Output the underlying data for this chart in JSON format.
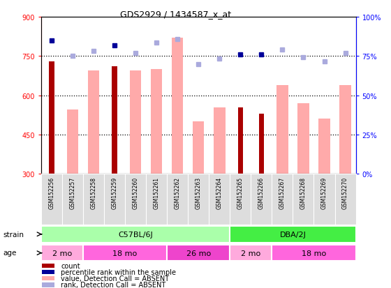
{
  "title": "GDS2929 / 1434587_x_at",
  "samples": [
    "GSM152256",
    "GSM152257",
    "GSM152258",
    "GSM152259",
    "GSM152260",
    "GSM152261",
    "GSM152262",
    "GSM152263",
    "GSM152264",
    "GSM152265",
    "GSM152266",
    "GSM152267",
    "GSM152268",
    "GSM152269",
    "GSM152270"
  ],
  "count_values": [
    730,
    null,
    null,
    710,
    null,
    null,
    null,
    null,
    null,
    555,
    530,
    null,
    null,
    null,
    null
  ],
  "absent_value_bars": [
    null,
    545,
    695,
    null,
    695,
    700,
    820,
    500,
    555,
    null,
    null,
    640,
    570,
    510,
    640
  ],
  "percentile_rank_present": [
    810,
    null,
    null,
    790,
    null,
    null,
    null,
    null,
    null,
    755,
    755,
    null,
    null,
    null,
    null
  ],
  "percentile_rank_absent": [
    null,
    750,
    770,
    null,
    760,
    800,
    815,
    720,
    740,
    null,
    null,
    775,
    745,
    730,
    760
  ],
  "ylim": [
    300,
    900
  ],
  "y_ticks_left": [
    300,
    450,
    600,
    750,
    900
  ],
  "y_ticks_right_labels": [
    "0%",
    "25%",
    "50%",
    "75%",
    "100%"
  ],
  "dotted_lines": [
    450,
    600,
    750
  ],
  "count_color": "#AA0000",
  "absent_bar_color": "#FFAAAA",
  "present_rank_color": "#000099",
  "absent_rank_color": "#AAAADD",
  "strain_c57_color": "#AAFFAA",
  "strain_dba_color": "#44EE44",
  "age_colors": [
    "#FFAADD",
    "#FF66DD",
    "#EE44CC",
    "#FFAADD",
    "#FF66DD"
  ],
  "age_groups": [
    {
      "label": "2 mo",
      "start": 0,
      "end": 2
    },
    {
      "label": "18 mo",
      "start": 2,
      "end": 6
    },
    {
      "label": "26 mo",
      "start": 6,
      "end": 9
    },
    {
      "label": "2 mo",
      "start": 9,
      "end": 11
    },
    {
      "label": "18 mo",
      "start": 11,
      "end": 15
    }
  ],
  "strain_groups": [
    {
      "label": "C57BL/6J",
      "start": 0,
      "end": 9,
      "color": "#AAFFAA"
    },
    {
      "label": "DBA/2J",
      "start": 9,
      "end": 15,
      "color": "#44EE44"
    }
  ],
  "legend_items": [
    {
      "label": "count",
      "color": "#AA0000"
    },
    {
      "label": "percentile rank within the sample",
      "color": "#000099"
    },
    {
      "label": "value, Detection Call = ABSENT",
      "color": "#FFAAAA"
    },
    {
      "label": "rank, Detection Call = ABSENT",
      "color": "#AAAADD"
    }
  ]
}
